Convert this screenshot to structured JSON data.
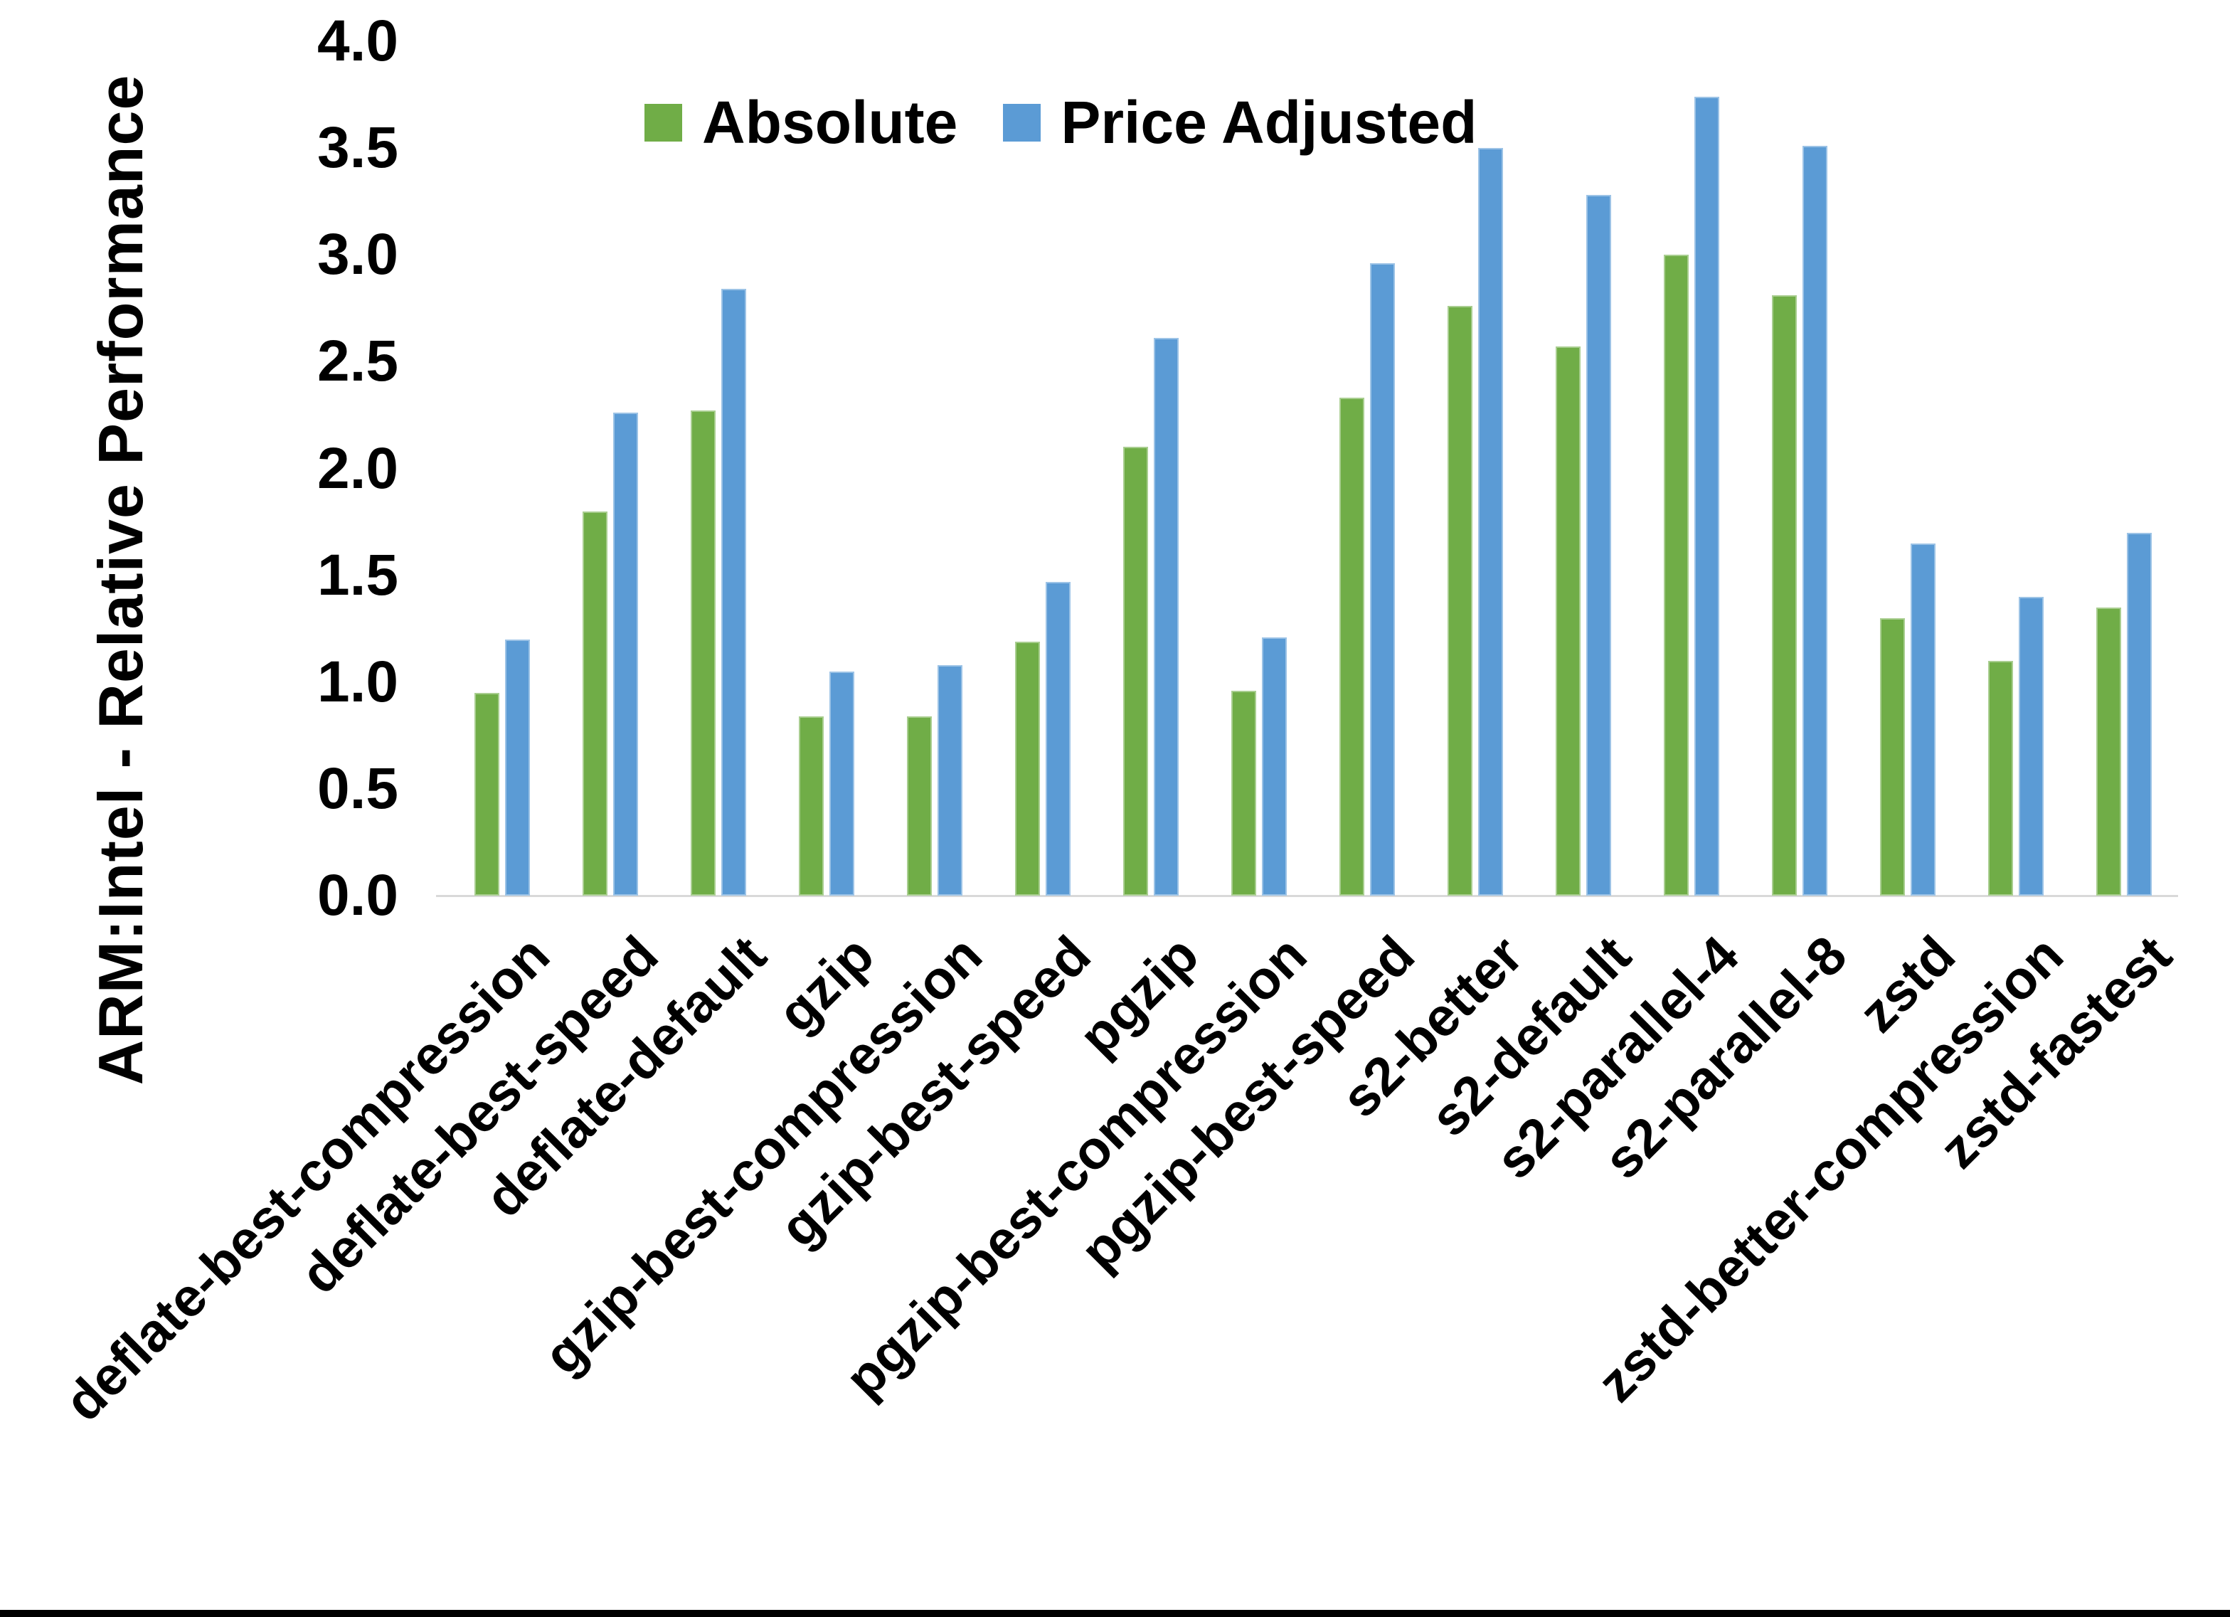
{
  "colors": {
    "background": "#ffffff",
    "axis_line": "#d9d9d9",
    "text": "#000000",
    "absolute_green": "#70AD47",
    "price_adjusted_blue": "#5B9BD5",
    "bottom_border": "#000000"
  },
  "legend": {
    "absolute_label": "Absolute",
    "price_adjusted_label": "Price Adjusted"
  },
  "chart_data": {
    "type": "bar",
    "title": "",
    "xlabel": "",
    "ylabel": "ARM:Intel - Relative Performance",
    "ylim": [
      0.0,
      4.0
    ],
    "tick_step": 0.5,
    "y_tick_labels": [
      "0.0",
      "0.5",
      "1.0",
      "1.5",
      "2.0",
      "2.5",
      "3.0",
      "3.5",
      "4.0"
    ],
    "grid": false,
    "legend_position": "top",
    "categories": [
      "deflate-best-compression",
      "deflate-best-speed",
      "deflate-default",
      "gzip",
      "gzip-best-compression",
      "gzip-best-speed",
      "pgzip",
      "pgzip-best-compression",
      "pgzip-best-speed",
      "s2-better",
      "s2-default",
      "s2-parallel-4",
      "s2-parallel-8",
      "zstd",
      "zstd-better-compression",
      "zstd-fastest"
    ],
    "series": [
      {
        "name": "Absolute",
        "color": "#70AD47",
        "values": [
          0.95,
          1.8,
          2.27,
          0.84,
          0.84,
          1.19,
          2.1,
          0.96,
          2.33,
          2.76,
          2.57,
          3.0,
          2.81,
          1.3,
          1.1,
          1.35
        ]
      },
      {
        "name": "Price Adjusted",
        "color": "#5B9BD5",
        "values": [
          1.2,
          2.26,
          2.84,
          1.05,
          1.08,
          1.47,
          2.61,
          1.21,
          2.96,
          3.5,
          3.28,
          3.74,
          3.51,
          1.65,
          1.4,
          1.7
        ]
      }
    ]
  }
}
